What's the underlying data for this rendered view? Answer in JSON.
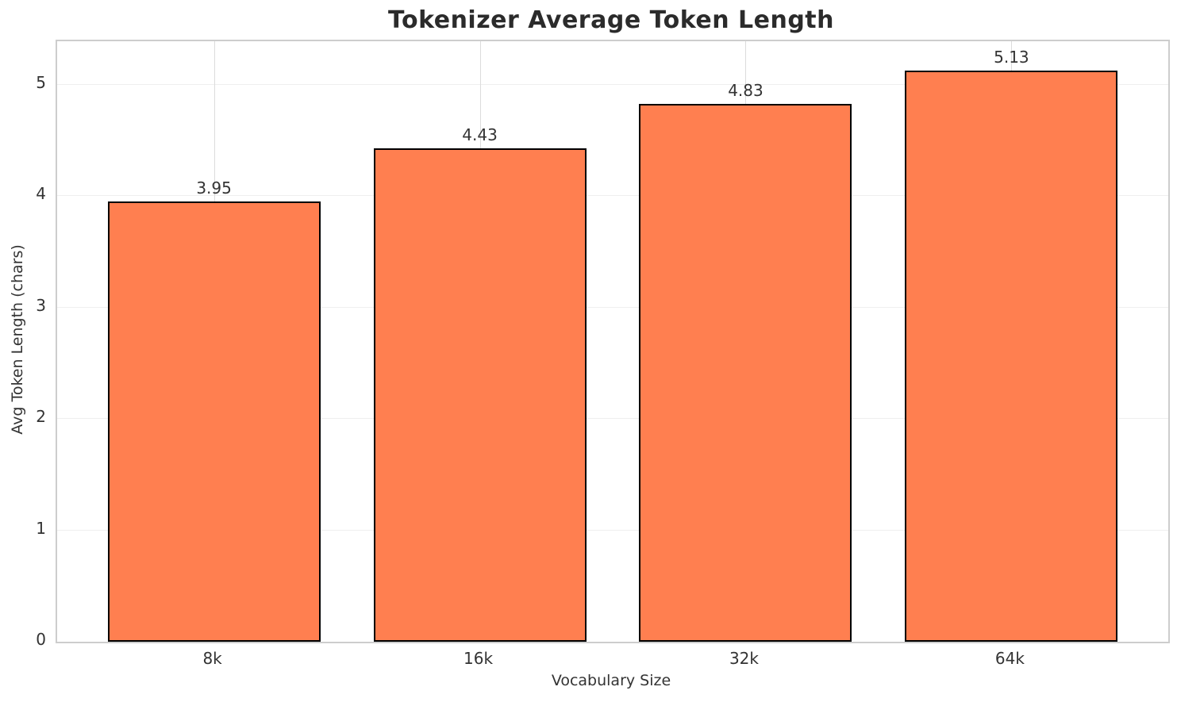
{
  "chart_data": {
    "type": "bar",
    "title": "Tokenizer Average Token Length",
    "xlabel": "Vocabulary Size",
    "ylabel": "Avg Token Length (chars)",
    "categories": [
      "8k",
      "16k",
      "32k",
      "64k"
    ],
    "values": [
      3.95,
      4.43,
      4.83,
      5.13
    ],
    "value_labels": [
      "3.95",
      "4.43",
      "4.83",
      "5.13"
    ],
    "yticks": [
      0,
      1,
      2,
      3,
      4,
      5
    ],
    "ytick_labels": [
      "0",
      "1",
      "2",
      "3",
      "4",
      "5"
    ],
    "ylim": [
      0,
      5.39
    ],
    "grid": true,
    "legend": false
  },
  "colors": {
    "bar_fill": "#FF7F50",
    "bar_edge": "#000000",
    "grid_horizontal": "#EFEFEF",
    "grid_vertical": "#DCDCDC",
    "spine": "#CDCDCD",
    "tick_text": "#333333",
    "title_text": "#2B2B2B",
    "background": "#FFFFFF"
  }
}
